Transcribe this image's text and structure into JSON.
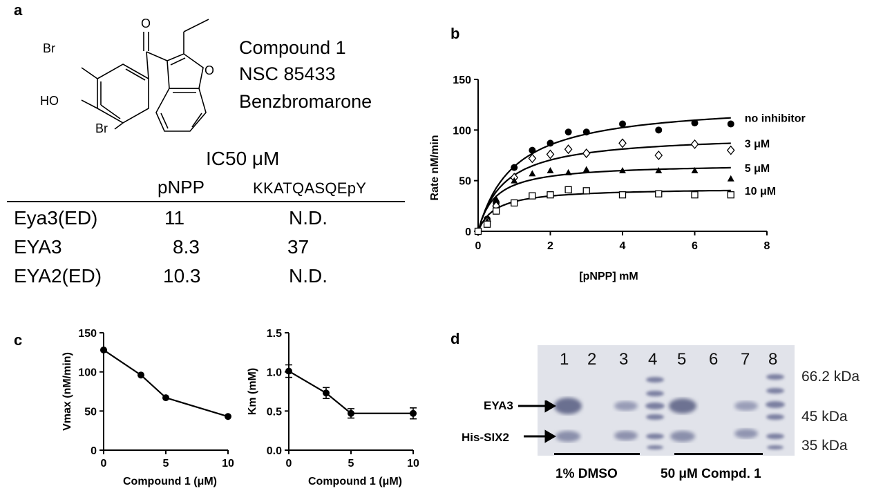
{
  "panels": {
    "a": "a",
    "b": "b",
    "c": "c",
    "d": "d"
  },
  "structure": {
    "atoms": {
      "br_top": "Br",
      "ho": "HO",
      "br_bottom": "Br",
      "o_carbonyl": "O",
      "o_furan": "O"
    }
  },
  "compound_names": [
    "Compound 1",
    "NSC 85433",
    "Benzbromarone"
  ],
  "ic50_table": {
    "title": "IC50 μM",
    "columns": [
      "pNPP",
      "KKATQASQEpY"
    ],
    "rows": [
      {
        "name": "Eya3(ED)",
        "pnpp": "11",
        "peptide": "N.D."
      },
      {
        "name": "EYA3",
        "pnpp": "8.3",
        "peptide": "37"
      },
      {
        "name": "EYA2(ED)",
        "pnpp": "10.3",
        "peptide": "N.D."
      }
    ]
  },
  "chart_data": [
    {
      "type": "scatter",
      "panel": "b",
      "xlabel": "[pNPP] mM",
      "ylabel": "Rate nM/min",
      "xlim": [
        0,
        8
      ],
      "ylim": [
        0,
        150
      ],
      "xticks": [
        "0",
        "2",
        "4",
        "6",
        "8"
      ],
      "yticks": [
        "0",
        "50",
        "100",
        "150"
      ],
      "series": [
        {
          "name": "no inhibitor",
          "marker": "filled-circle",
          "vmax": 128,
          "km": 1.0,
          "x": [
            0,
            0.25,
            0.5,
            1,
            1.5,
            2,
            2.5,
            3,
            4,
            5,
            6,
            7
          ],
          "y": [
            0,
            12,
            28,
            63,
            80,
            87,
            98,
            98,
            106,
            100,
            107,
            106
          ]
        },
        {
          "name": "3 μM",
          "marker": "open-diamond",
          "vmax": 96,
          "km": 0.73,
          "x": [
            0,
            0.25,
            0.5,
            1,
            1.5,
            2,
            2.5,
            3,
            4,
            5,
            6,
            7
          ],
          "y": [
            0,
            10,
            25,
            53,
            72,
            76,
            81,
            77,
            87,
            75,
            86,
            80
          ]
        },
        {
          "name": "5 μM",
          "marker": "filled-triangle",
          "vmax": 67,
          "km": 0.47,
          "x": [
            0,
            0.25,
            0.5,
            1,
            1.5,
            2,
            2.5,
            3,
            4,
            5,
            6,
            7
          ],
          "y": [
            0,
            10,
            32,
            50,
            57,
            60,
            58,
            61,
            60,
            60,
            60,
            52
          ]
        },
        {
          "name": "10 μM",
          "marker": "open-square",
          "vmax": 43,
          "km": 0.47,
          "x": [
            0,
            0.25,
            0.5,
            1,
            1.5,
            2,
            2.5,
            3,
            4,
            5,
            6,
            7
          ],
          "y": [
            0,
            7,
            20,
            28,
            35,
            36,
            41,
            40,
            36,
            37,
            36,
            36
          ]
        }
      ]
    },
    {
      "type": "line",
      "panel": "c-left",
      "xlabel": "Compound 1 (μM)",
      "ylabel": "Vmax (nM/min)",
      "xlim": [
        0,
        10
      ],
      "ylim": [
        0,
        150
      ],
      "xticks": [
        "0",
        "5",
        "10"
      ],
      "yticks": [
        "0",
        "50",
        "100",
        "150"
      ],
      "x": [
        0,
        3,
        5,
        10
      ],
      "y": [
        128,
        96,
        67,
        43
      ]
    },
    {
      "type": "line",
      "panel": "c-right",
      "xlabel": "Compound 1 (μM)",
      "ylabel": "Km (mM)",
      "xlim": [
        0,
        10
      ],
      "ylim": [
        0,
        1.5
      ],
      "xticks": [
        "0",
        "5",
        "10"
      ],
      "yticks": [
        "0.0",
        "0.5",
        "1.0",
        "1.5"
      ],
      "x": [
        0,
        3,
        5,
        10
      ],
      "y": [
        1.01,
        0.73,
        0.47,
        0.47
      ],
      "err": [
        0.08,
        0.07,
        0.06,
        0.07
      ]
    }
  ],
  "gel": {
    "lanes": [
      "1",
      "2",
      "3",
      "4",
      "5",
      "6",
      "7",
      "8"
    ],
    "markers": [
      "66.2 kDa",
      "45 kDa",
      "35 kDa"
    ],
    "bands": [
      "EYA3",
      "His-SIX2"
    ],
    "groups": [
      "1% DMSO",
      "50 μM Compd. 1"
    ]
  }
}
